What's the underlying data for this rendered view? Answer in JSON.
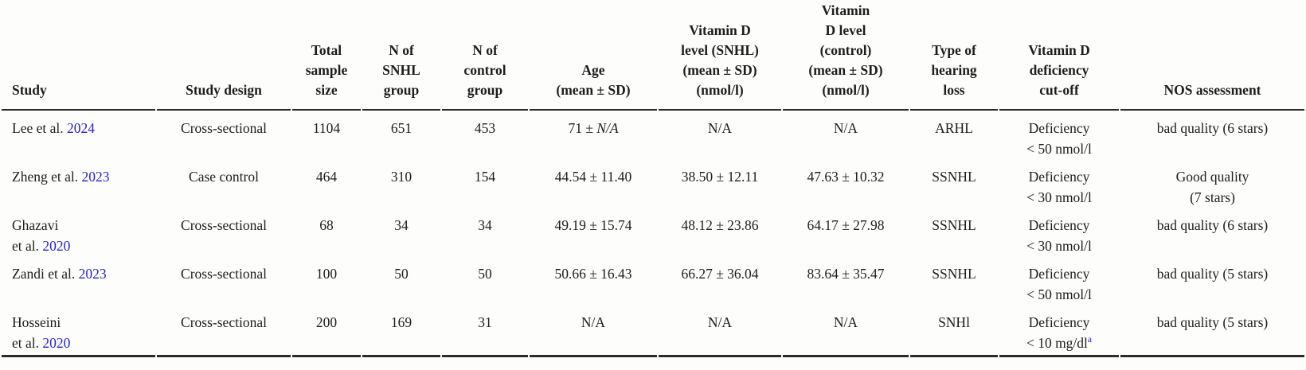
{
  "colors": {
    "link": "#2424cd",
    "text": "#1d1d1d",
    "rule": "#2b2b2b",
    "background": "#fdfdfc"
  },
  "table": {
    "columns": [
      {
        "key": "study",
        "label": "Study"
      },
      {
        "key": "design",
        "label": "Study design"
      },
      {
        "key": "total",
        "label": "Total\nsample\nsize"
      },
      {
        "key": "n_snhl",
        "label": "N of\nSNHL\ngroup"
      },
      {
        "key": "n_control",
        "label": "N of\ncontrol\ngroup"
      },
      {
        "key": "age",
        "label": "Age\n(mean ± SD)"
      },
      {
        "key": "vitd_snhl",
        "label": "Vitamin D\nlevel (SNHL)\n(mean ± SD)\n(nmol/l)"
      },
      {
        "key": "vitd_control",
        "label": "Vitamin\nD level\n(control)\n(mean ± SD)\n(nmol/l)"
      },
      {
        "key": "type",
        "label": "Type of\nhearing\nloss"
      },
      {
        "key": "cutoff",
        "label": "Vitamin D\ndeficiency\ncut-off"
      },
      {
        "key": "nos",
        "label": "NOS assessment"
      }
    ],
    "rows": [
      {
        "cells": [
          [
            {
              "t": "Lee et al. "
            },
            {
              "t": "2024",
              "style": "link"
            }
          ],
          [
            {
              "t": "Cross-sectional"
            }
          ],
          [
            {
              "t": "1104"
            }
          ],
          [
            {
              "t": "651"
            }
          ],
          [
            {
              "t": "453"
            }
          ],
          [
            {
              "t": "71 ± "
            },
            {
              "t": "N/A",
              "style": "italic"
            }
          ],
          [
            {
              "t": "N/A"
            }
          ],
          [
            {
              "t": "N/A"
            }
          ],
          [
            {
              "t": "ARHL"
            }
          ],
          [
            {
              "t": "Deficiency\n< 50 nmol/l"
            }
          ],
          [
            {
              "t": "bad quality (6 stars)"
            }
          ]
        ]
      },
      {
        "cells": [
          [
            {
              "t": "Zheng et al. "
            },
            {
              "t": "2023",
              "style": "link"
            }
          ],
          [
            {
              "t": "Case control"
            }
          ],
          [
            {
              "t": "464"
            }
          ],
          [
            {
              "t": "310"
            }
          ],
          [
            {
              "t": "154"
            }
          ],
          [
            {
              "t": "44.54 ± 11.40"
            }
          ],
          [
            {
              "t": "38.50 ± 12.11"
            }
          ],
          [
            {
              "t": "47.63 ± 10.32"
            }
          ],
          [
            {
              "t": "SSNHL"
            }
          ],
          [
            {
              "t": "Deficiency\n< 30 nmol/l"
            }
          ],
          [
            {
              "t": "Good quality\n(7 stars)"
            }
          ]
        ]
      },
      {
        "cells": [
          [
            {
              "t": "Ghazavi\net al. "
            },
            {
              "t": "2020",
              "style": "link"
            }
          ],
          [
            {
              "t": "Cross-sectional"
            }
          ],
          [
            {
              "t": "68"
            }
          ],
          [
            {
              "t": "34"
            }
          ],
          [
            {
              "t": "34"
            }
          ],
          [
            {
              "t": "49.19 ± 15.74"
            }
          ],
          [
            {
              "t": "48.12 ± 23.86"
            }
          ],
          [
            {
              "t": "64.17 ± 27.98"
            }
          ],
          [
            {
              "t": "SSNHL"
            }
          ],
          [
            {
              "t": "Deficiency\n< 30 nmol/l"
            }
          ],
          [
            {
              "t": "bad quality (6 stars)"
            }
          ]
        ]
      },
      {
        "cells": [
          [
            {
              "t": "Zandi et al. "
            },
            {
              "t": "2023",
              "style": "link"
            }
          ],
          [
            {
              "t": "Cross-sectional"
            }
          ],
          [
            {
              "t": "100"
            }
          ],
          [
            {
              "t": "50"
            }
          ],
          [
            {
              "t": "50"
            }
          ],
          [
            {
              "t": "50.66 ± 16.43"
            }
          ],
          [
            {
              "t": "66.27 ± 36.04"
            }
          ],
          [
            {
              "t": "83.64 ± 35.47"
            }
          ],
          [
            {
              "t": "SSNHL"
            }
          ],
          [
            {
              "t": "Deficiency\n< 50 nmol/l"
            }
          ],
          [
            {
              "t": "bad quality (5 stars)"
            }
          ]
        ]
      },
      {
        "cells": [
          [
            {
              "t": "Hosseini\net al. "
            },
            {
              "t": "2020",
              "style": "link"
            }
          ],
          [
            {
              "t": "Cross-sectional"
            }
          ],
          [
            {
              "t": "200"
            }
          ],
          [
            {
              "t": "169"
            }
          ],
          [
            {
              "t": "31"
            }
          ],
          [
            {
              "t": "N/A"
            }
          ],
          [
            {
              "t": "N/A"
            }
          ],
          [
            {
              "t": "N/A"
            }
          ],
          [
            {
              "t": "SNHl"
            }
          ],
          [
            {
              "t": "Deficiency\n< 10 mg/dl"
            },
            {
              "t": "a",
              "style": "sup"
            }
          ],
          [
            {
              "t": "bad quality (5 stars)"
            }
          ]
        ]
      }
    ]
  }
}
